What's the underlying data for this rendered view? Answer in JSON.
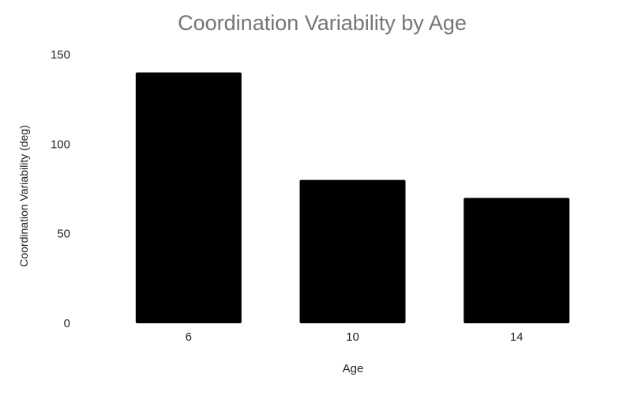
{
  "chart_data": {
    "type": "bar",
    "title": "Coordination Variability by Age",
    "xlabel": "Age",
    "ylabel": "Coordination Variability (deg)",
    "categories": [
      "6",
      "10",
      "14"
    ],
    "values": [
      140,
      80,
      70
    ],
    "ylim": [
      0,
      150
    ],
    "yticks": [
      0,
      50,
      100,
      150
    ],
    "grid": false,
    "legend": "none",
    "colors": {
      "bar": "#000000",
      "title": "#757575",
      "axis_text": "#222222"
    }
  }
}
